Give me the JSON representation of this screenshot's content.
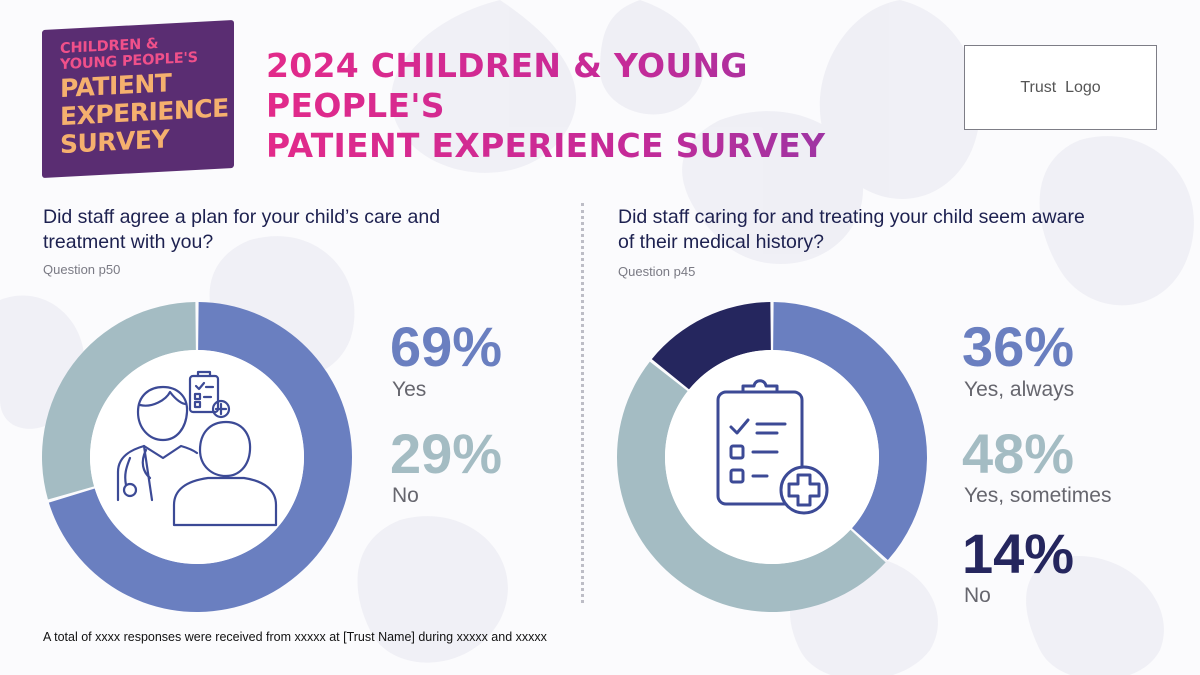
{
  "badge": {
    "line1": "CHILDREN &",
    "line2": "YOUNG PEOPLE'S",
    "line3": "PATIENT",
    "line4": "EXPERIENCE",
    "line5": "SURVEY"
  },
  "title": {
    "line1": "2024 CHILDREN & YOUNG PEOPLE'S",
    "line2": "PATIENT EXPERIENCE SURVEY"
  },
  "trust_logo": "Trust  Logo",
  "footnote": "A total of xxxx responses were received from xxxxx at [Trust Name] during xxxxx and xxxxx",
  "colors": {
    "yes": "#6a7fc0",
    "no": "#a4bcc3",
    "navy": "#25265e"
  },
  "charts": [
    {
      "question_line1": "Did staff agree a plan for your child’s care and",
      "question_line2": "treatment with you?",
      "question_ref": "Question p50",
      "icon": "doctor-patient-icon",
      "stats": [
        {
          "pct": "69%",
          "label": "Yes"
        },
        {
          "pct": "29%",
          "label": "No"
        }
      ]
    },
    {
      "question_line1": "Did staff caring for and treating your child seem aware",
      "question_line2": "of their medical history?",
      "question_ref": "Question p45",
      "icon": "clipboard-checklist-icon",
      "stats": [
        {
          "pct": "36%",
          "label": "Yes, always"
        },
        {
          "pct": "48%",
          "label": "Yes, sometimes"
        },
        {
          "pct": "14%",
          "label": "No"
        }
      ]
    }
  ],
  "chart_data": [
    {
      "type": "pie",
      "categories": [
        "Yes",
        "No"
      ],
      "values": [
        69,
        29
      ],
      "colors": [
        "#6a7fc0",
        "#a4bcc3"
      ]
    },
    {
      "type": "pie",
      "categories": [
        "Yes, always",
        "Yes, sometimes",
        "No"
      ],
      "values": [
        36,
        48,
        14
      ],
      "colors": [
        "#6a7fc0",
        "#a4bcc3",
        "#25265e"
      ]
    }
  ]
}
